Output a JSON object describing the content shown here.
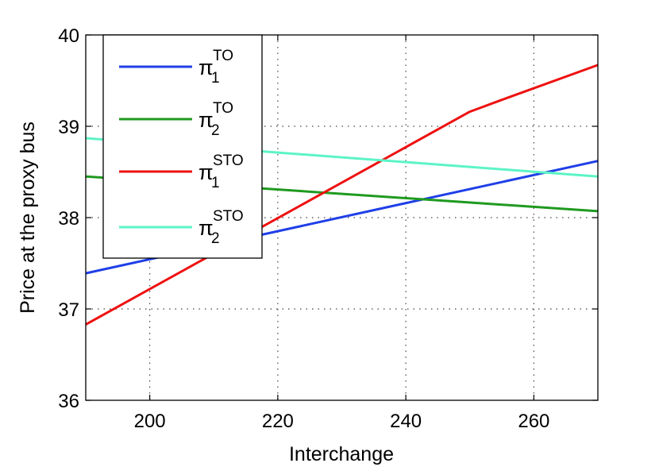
{
  "chart_data": {
    "type": "line",
    "xlabel": "Interchange",
    "ylabel": "Price at the proxy bus",
    "xlim": [
      190,
      270
    ],
    "ylim": [
      36,
      40
    ],
    "xticks": [
      "200",
      "220",
      "240",
      "260"
    ],
    "yticks": [
      "36",
      "37",
      "38",
      "39",
      "40"
    ],
    "grid": true,
    "legend_position": "top-left",
    "series": [
      {
        "name": "π1TO",
        "sym": "π",
        "sub": "1",
        "sup": "TO",
        "color": "#1f3fe8",
        "x": [
          190,
          270
        ],
        "y": [
          37.39,
          38.62
        ]
      },
      {
        "name": "π2TO",
        "sym": "π",
        "sub": "2",
        "sup": "TO",
        "color": "#1f9a1f",
        "x": [
          190,
          270
        ],
        "y": [
          38.45,
          38.07
        ]
      },
      {
        "name": "π1STO",
        "sym": "π",
        "sub": "1",
        "sup": "STO",
        "color": "#ee1111",
        "x": [
          190,
          250,
          255,
          270
        ],
        "y": [
          36.83,
          39.16,
          39.29,
          39.67
        ]
      },
      {
        "name": "π2STO",
        "sym": "π",
        "sub": "2",
        "sup": "STO",
        "color": "#5cf4c6",
        "x": [
          190,
          270
        ],
        "y": [
          38.87,
          38.45
        ]
      }
    ]
  }
}
